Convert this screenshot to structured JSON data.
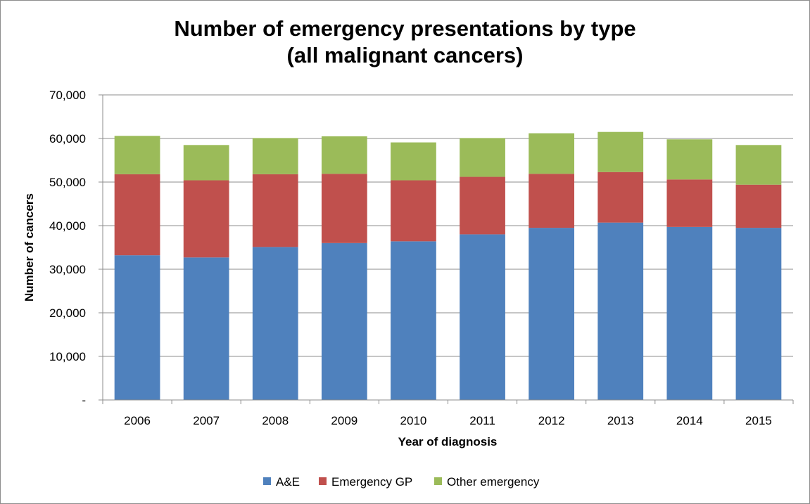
{
  "chart_data": {
    "type": "bar",
    "stacked": true,
    "title_lines": [
      "Number of emergency presentations  by type",
      "(all malignant cancers)"
    ],
    "xlabel": "Year of diagnosis",
    "ylabel": "Number of cancers",
    "categories": [
      "2006",
      "2007",
      "2008",
      "2009",
      "2010",
      "2011",
      "2012",
      "2013",
      "2014",
      "2015"
    ],
    "ylim": [
      0,
      70000
    ],
    "yticks": [
      0,
      10000,
      20000,
      30000,
      40000,
      50000,
      60000,
      70000
    ],
    "ytick_labels": [
      "-",
      "10,000",
      "20,000",
      "30,000",
      "40,000",
      "50,000",
      "60,000",
      "70,000"
    ],
    "grid": true,
    "legend_position": "bottom",
    "series": [
      {
        "name": "A&E",
        "color": "#4F81BD",
        "values": [
          33200,
          32700,
          35100,
          36000,
          36400,
          38000,
          39500,
          40700,
          39700,
          39500
        ]
      },
      {
        "name": "Emergency GP",
        "color": "#C0504D",
        "values": [
          18600,
          17700,
          16700,
          15900,
          14000,
          13200,
          12400,
          11600,
          10900,
          9900
        ]
      },
      {
        "name": "Other emergency",
        "color": "#9BBB59",
        "values": [
          8800,
          8100,
          8300,
          8600,
          8700,
          8900,
          9300,
          9200,
          9200,
          9100
        ]
      }
    ]
  }
}
